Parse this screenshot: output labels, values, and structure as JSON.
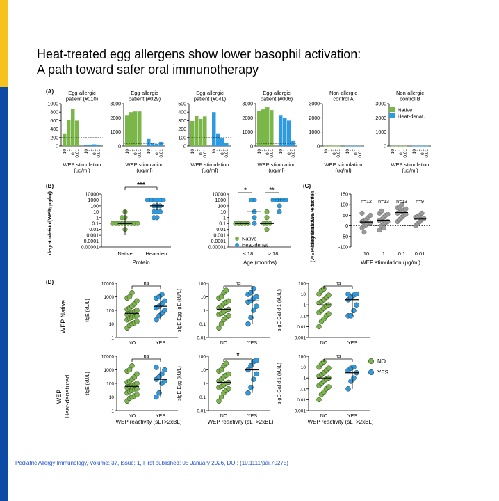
{
  "header": {
    "title_line1": "Heat-treated egg allergens show lower basophil activation:",
    "title_line2": "A path toward safer oral immunotherapy"
  },
  "footer": {
    "citation": "Pediatric Allergy Immunology, Volume: 37, Issue: 1, First published: 05 January 2026, DOI: (10.1111/pai.70275)"
  },
  "colors": {
    "native": "#7ab648",
    "heat": "#2e9be0",
    "grey": "#9a9a9a",
    "sidebar_top": "#f7c21b",
    "sidebar_bottom": "#0d4aa6",
    "citation": "#1f4fd1"
  },
  "chart_data": [
    {
      "panel": "(A)",
      "type": "bar",
      "legend": [
        "Native",
        "Heat-denat."
      ],
      "xlabel": "WEP stimulation\n(ug/ml)",
      "x_ticks": [
        "10",
        "1",
        "0.1",
        "0.01"
      ],
      "subplots": [
        {
          "title": "Egg-allergic\npatient (#010)",
          "ylim": [
            0,
            1000
          ],
          "yticks": [
            0,
            200,
            400,
            600,
            800,
            1000
          ],
          "native": [
            300,
            620,
            880,
            600
          ],
          "heat": [
            30,
            30,
            40,
            30
          ]
        },
        {
          "title": "Egg-allergic\npatient (#029)",
          "ylim": [
            0,
            3000
          ],
          "yticks": [
            0,
            1000,
            2000,
            3000
          ],
          "native": [
            2200,
            2400,
            2450,
            2450
          ],
          "heat": [
            500,
            200,
            150,
            300
          ]
        },
        {
          "title": "Egg-allergic\npatient (#041)",
          "ylim": [
            0,
            500
          ],
          "yticks": [
            0,
            100,
            200,
            300,
            400,
            500
          ],
          "native": [
            295,
            360,
            320,
            350
          ],
          "heat": [
            400,
            150,
            90,
            40
          ]
        },
        {
          "title": "Egg-allergic\npatient (#006)",
          "ylim": [
            0,
            3000
          ],
          "yticks": [
            0,
            1000,
            2000,
            3000
          ],
          "native": [
            2500,
            2600,
            2750,
            2550
          ],
          "heat": [
            2200,
            2000,
            1800,
            400
          ]
        },
        {
          "title": "Non-allergic\ncontrol A",
          "ylim": [
            0,
            3000
          ],
          "yticks": [
            0,
            1000,
            2000,
            3000
          ],
          "native": [
            10,
            10,
            10,
            10
          ],
          "heat": [
            10,
            10,
            10,
            10
          ]
        },
        {
          "title": "Non-allergic\ncontrol B",
          "ylim": [
            0,
            3000
          ],
          "yticks": [
            0,
            1000,
            2000,
            3000
          ],
          "native": [
            10,
            10,
            10,
            10
          ],
          "heat": [
            10,
            10,
            10,
            10
          ]
        }
      ]
    },
    {
      "panel": "(B)",
      "type": "scatter",
      "ylabel": "Lowest dose inducing\ndegranulation (WEP, μg/ml)",
      "yticks": [
        "10000",
        "1000",
        "100",
        "10",
        "1",
        "0.1",
        "0.01",
        "0.001",
        "0.0001",
        "0.00001"
      ],
      "left": {
        "categories": [
          "Native",
          "Heat-den."
        ],
        "xlabel": "Protein",
        "significance": "***",
        "native": [
          0.01,
          0.1,
          0.1,
          0.1,
          0.1,
          0.1,
          0.1,
          0.1,
          0.1,
          0.1,
          1,
          1,
          10
        ],
        "heat": [
          1,
          1,
          10,
          10,
          10,
          100,
          100,
          100,
          1000,
          1000,
          1000,
          1000,
          1000,
          1000
        ]
      },
      "right": {
        "categories": [
          "≤ 18",
          "> 18"
        ],
        "xlabel": "Age   (months)",
        "significance": [
          "*",
          "**"
        ],
        "legend": [
          "Native",
          "Heat-denat"
        ],
        "le18_native": [
          0.1,
          0.1,
          0.1,
          0.1,
          0.1
        ],
        "le18_heat": [
          0.1,
          1,
          10,
          1000,
          1000
        ],
        "gt18_native": [
          0.01,
          0.1,
          0.1,
          0.1,
          1,
          10
        ],
        "gt18_heat": [
          10,
          100,
          1000,
          1000,
          1000,
          1000,
          1000
        ]
      }
    },
    {
      "panel": "(C)",
      "type": "scatter",
      "ylabel": "% degranulation reduction\n(WEP heat-denat/WEP native)",
      "yticks": [
        150,
        100,
        50,
        0,
        -50,
        -100
      ],
      "categories": [
        "10",
        "1",
        "0.1",
        "0.01"
      ],
      "n_labels": [
        "n=12",
        "n=13",
        "n=13",
        "n=9"
      ],
      "xlabel": "WEP stimulation (μg/ml)",
      "values": [
        [
          -10,
          0,
          5,
          10,
          15,
          20,
          25,
          30,
          40,
          50,
          60,
          -30
        ],
        [
          -20,
          0,
          10,
          15,
          20,
          25,
          30,
          40,
          50,
          55,
          60,
          70,
          -10
        ],
        [
          20,
          30,
          40,
          50,
          55,
          60,
          65,
          70,
          75,
          80,
          85,
          90,
          100
        ],
        [
          0,
          10,
          20,
          30,
          35,
          40,
          45,
          50,
          60
        ]
      ]
    },
    {
      "panel": "(D)",
      "type": "scatter",
      "row_labels": [
        "WEP Native",
        "WEP\nHeat-denatured"
      ],
      "categories": [
        "NO",
        "YES"
      ],
      "xlabel": "WEP reactivity (sLT>2xBL)",
      "legend": [
        "NO",
        "YES"
      ],
      "plots": [
        {
          "ylabel": "tIgE (kU/L)",
          "yticks": [
            "10000",
            "1000",
            "100",
            "10",
            "1"
          ],
          "sig": "ns",
          "no": [
            5,
            8,
            10,
            12,
            15,
            20,
            25,
            30,
            35,
            40,
            50,
            60,
            70,
            80,
            100,
            120,
            150,
            200,
            300,
            500,
            800,
            1000,
            2000
          ],
          "yes": [
            20,
            40,
            60,
            100,
            150,
            200,
            300,
            500,
            800,
            1000,
            1500
          ]
        },
        {
          "ylabel": "sIgE-Egg IgE (kU/L)",
          "yticks": [
            "100",
            "10",
            "1",
            "0.1",
            "0.01"
          ],
          "sig": "ns",
          "no": [
            0.05,
            0.1,
            0.2,
            0.3,
            0.4,
            0.5,
            0.6,
            0.8,
            1,
            1.2,
            1.5,
            2,
            3,
            4,
            5,
            8,
            10,
            20,
            30
          ],
          "yes": [
            0.1,
            0.3,
            1,
            2,
            4,
            5,
            8,
            10,
            15,
            20,
            40
          ]
        },
        {
          "ylabel": "sIgE-Gal d 1 (kU/L)",
          "yticks": [
            "100",
            "10",
            "1",
            "0.1",
            "0.01",
            "0.001"
          ],
          "sig": "ns",
          "no": [
            0.01,
            0.03,
            0.05,
            0.1,
            0.15,
            0.2,
            0.3,
            0.5,
            0.8,
            1,
            1.5,
            2,
            3,
            5,
            8,
            10,
            20,
            30
          ],
          "yes": [
            0.1,
            0.1,
            0.3,
            1,
            3,
            5,
            8,
            10,
            10
          ]
        },
        {
          "ylabel": "tIgE (kU/L)",
          "yticks": [
            "10000",
            "1000",
            "100",
            "10",
            "1"
          ],
          "sig": "ns",
          "no": [
            5,
            8,
            10,
            12,
            15,
            20,
            25,
            30,
            35,
            40,
            50,
            60,
            70,
            80,
            100,
            120,
            150,
            200,
            300,
            500,
            800,
            1000,
            2000
          ],
          "yes": [
            10,
            20,
            100,
            150,
            200,
            300,
            500,
            1000,
            1500
          ]
        },
        {
          "ylabel": "sIgE-Egg (kU/L)",
          "yticks": [
            "100",
            "10",
            "1",
            "0.1",
            "0.01"
          ],
          "sig": "*",
          "no": [
            0.05,
            0.1,
            0.2,
            0.3,
            0.4,
            0.5,
            0.6,
            0.8,
            1,
            1.2,
            1.5,
            2,
            3,
            4,
            5,
            8,
            10,
            20,
            30
          ],
          "yes": [
            0.2,
            0.5,
            2,
            5,
            10,
            20,
            40,
            50
          ]
        },
        {
          "ylabel": "sIgE-Gal d 1 (kU/L)",
          "yticks": [
            "100",
            "10",
            "1",
            "0.1",
            "0.01",
            "0.001"
          ],
          "sig": "ns",
          "no": [
            0.01,
            0.03,
            0.05,
            0.1,
            0.15,
            0.2,
            0.3,
            0.5,
            0.8,
            1,
            1.5,
            2,
            3,
            5,
            8,
            10,
            20,
            30
          ],
          "yes": [
            0.1,
            0.5,
            1,
            3,
            5,
            8,
            10
          ]
        }
      ]
    }
  ]
}
